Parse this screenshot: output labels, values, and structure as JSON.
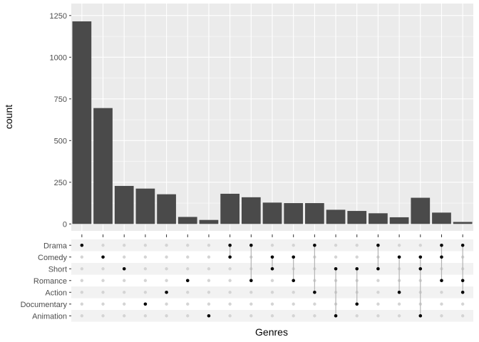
{
  "chart_data": {
    "type": "bar",
    "subtype": "upset",
    "xlabel": "Genres",
    "ylabel": "count",
    "ylim": [
      0,
      1250
    ],
    "yticks": [
      0,
      250,
      500,
      750,
      1000,
      1250
    ],
    "yticks_labels": [
      "0",
      "250",
      "500",
      "750",
      "1000",
      "1250"
    ],
    "grid": true,
    "sets": [
      "Drama",
      "Comedy",
      "Short",
      "Romance",
      "Action",
      "Documentary",
      "Animation"
    ],
    "bars": [
      {
        "members": [
          "Drama"
        ],
        "value": 1215
      },
      {
        "members": [
          "Comedy"
        ],
        "value": 695
      },
      {
        "members": [
          "Short"
        ],
        "value": 228
      },
      {
        "members": [
          "Documentary"
        ],
        "value": 212
      },
      {
        "members": [
          "Action"
        ],
        "value": 178
      },
      {
        "members": [
          "Romance"
        ],
        "value": 42
      },
      {
        "members": [
          "Animation"
        ],
        "value": 24
      },
      {
        "members": [
          "Drama",
          "Comedy"
        ],
        "value": 181
      },
      {
        "members": [
          "Drama",
          "Romance"
        ],
        "value": 160
      },
      {
        "members": [
          "Comedy",
          "Short"
        ],
        "value": 128
      },
      {
        "members": [
          "Comedy",
          "Romance"
        ],
        "value": 125
      },
      {
        "members": [
          "Drama",
          "Action"
        ],
        "value": 125
      },
      {
        "members": [
          "Short",
          "Animation"
        ],
        "value": 85
      },
      {
        "members": [
          "Short",
          "Documentary"
        ],
        "value": 78
      },
      {
        "members": [
          "Drama",
          "Short"
        ],
        "value": 64
      },
      {
        "members": [
          "Comedy",
          "Action"
        ],
        "value": 40
      },
      {
        "members": [
          "Comedy",
          "Short",
          "Animation"
        ],
        "value": 157
      },
      {
        "members": [
          "Drama",
          "Comedy",
          "Romance"
        ],
        "value": 68
      },
      {
        "members": [
          "Drama",
          "Romance",
          "Action"
        ],
        "value": 12
      }
    ],
    "colors": {
      "panel_bg": "#ebebeb",
      "grid": "#ffffff",
      "bar": "#4a4a4a",
      "matrix_stripe": "#f2f2f2",
      "dot_on": "#000000",
      "dot_off": "#d4d4d4",
      "connector": "#b3b3b3"
    }
  }
}
